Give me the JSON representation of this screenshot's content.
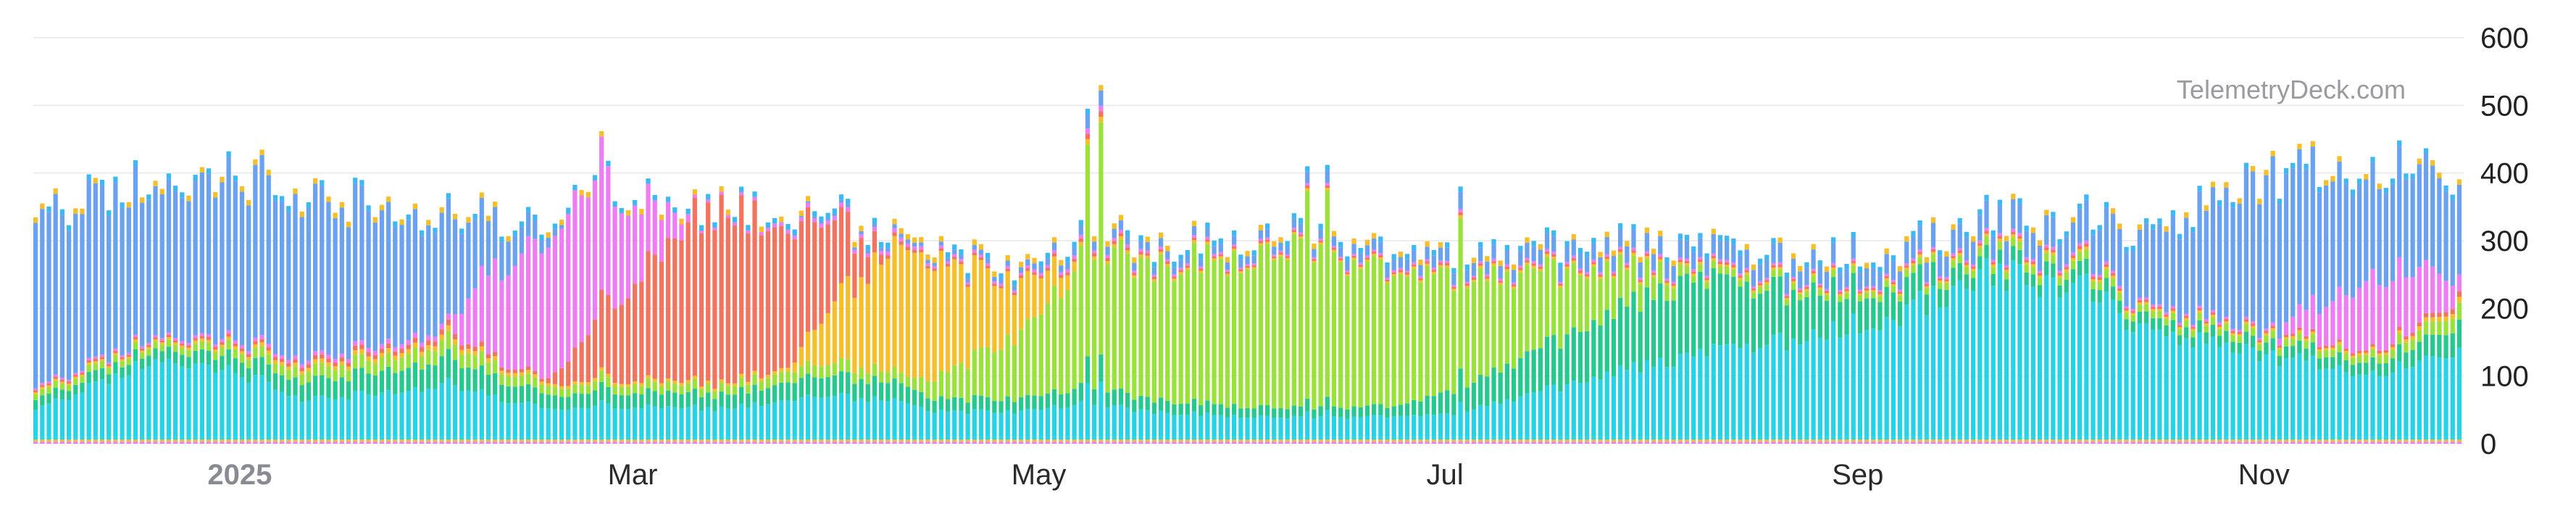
{
  "watermark": "TelemetryDeck.com",
  "chart_data": {
    "type": "bar",
    "stacked": true,
    "title": "",
    "xlabel": "",
    "ylabel": "",
    "ylim": [
      0,
      600
    ],
    "yticks": [
      "0",
      "100",
      "200",
      "300",
      "400",
      "500",
      "600"
    ],
    "y_axis_side": "right",
    "grid": true,
    "legend": "none",
    "x_range": [
      "2024-12-01",
      "2025-11-30"
    ],
    "x_ticks": [
      {
        "date": "2025-01-01",
        "label": "2025",
        "style": "year"
      },
      {
        "date": "2025-03-01",
        "label": "Mar"
      },
      {
        "date": "2025-05-01",
        "label": "May"
      },
      {
        "date": "2025-07-01",
        "label": "Jul"
      },
      {
        "date": "2025-09-01",
        "label": "Sep"
      },
      {
        "date": "2025-11-01",
        "label": "Nov"
      }
    ],
    "series_colors": [
      "#6aa2f0",
      "#26d2e6",
      "#25c98f",
      "#9ae23a",
      "#f6bf2a",
      "#f2745f",
      "#ee7cf2",
      "#3cb8f2"
    ],
    "totals_by_date": [
      [
        "2024-12-01",
        355
      ],
      [
        "2024-12-08",
        360
      ],
      [
        "2024-12-15",
        385
      ],
      [
        "2024-12-22",
        400
      ],
      [
        "2024-12-29",
        405
      ],
      [
        "2025-01-05",
        395
      ],
      [
        "2025-01-12",
        370
      ],
      [
        "2025-01-19",
        358
      ],
      [
        "2025-01-26",
        325
      ],
      [
        "2025-02-02",
        345
      ],
      [
        "2025-02-09",
        340
      ],
      [
        "2025-02-16",
        330
      ],
      [
        "2025-02-23",
        395
      ],
      [
        "2025-03-02",
        360
      ],
      [
        "2025-03-09",
        350
      ],
      [
        "2025-03-16",
        365
      ],
      [
        "2025-03-23",
        330
      ],
      [
        "2025-03-30",
        345
      ],
      [
        "2025-04-06",
        320
      ],
      [
        "2025-04-13",
        300
      ],
      [
        "2025-04-20",
        280
      ],
      [
        "2025-04-27",
        250
      ],
      [
        "2025-05-04",
        290
      ],
      [
        "2025-05-11",
        330
      ],
      [
        "2025-05-18",
        285
      ],
      [
        "2025-05-25",
        305
      ],
      [
        "2025-06-01",
        280
      ],
      [
        "2025-06-08",
        330
      ],
      [
        "2025-06-15",
        290
      ],
      [
        "2025-06-22",
        295
      ],
      [
        "2025-06-29",
        275
      ],
      [
        "2025-07-06",
        290
      ],
      [
        "2025-07-13",
        285
      ],
      [
        "2025-07-20",
        300
      ],
      [
        "2025-07-27",
        300
      ],
      [
        "2025-08-03",
        295
      ],
      [
        "2025-08-10",
        290
      ],
      [
        "2025-08-17",
        275
      ],
      [
        "2025-08-24",
        280
      ],
      [
        "2025-08-31",
        285
      ],
      [
        "2025-09-07",
        290
      ],
      [
        "2025-09-14",
        315
      ],
      [
        "2025-09-21",
        345
      ],
      [
        "2025-09-28",
        325
      ],
      [
        "2025-10-05",
        335
      ],
      [
        "2025-10-12",
        320
      ],
      [
        "2025-10-19",
        325
      ],
      [
        "2025-10-26",
        395
      ],
      [
        "2025-11-02",
        400
      ],
      [
        "2025-11-09",
        410
      ],
      [
        "2025-11-16",
        420
      ],
      [
        "2025-11-23",
        415
      ],
      [
        "2025-11-30",
        395
      ]
    ],
    "spikes": [
      [
        "2025-02-24",
        462
      ],
      [
        "2025-05-08",
        495
      ],
      [
        "2025-05-10",
        530
      ],
      [
        "2025-06-10",
        410
      ],
      [
        "2025-06-13",
        412
      ],
      [
        "2025-07-03",
        380
      ]
    ]
  }
}
